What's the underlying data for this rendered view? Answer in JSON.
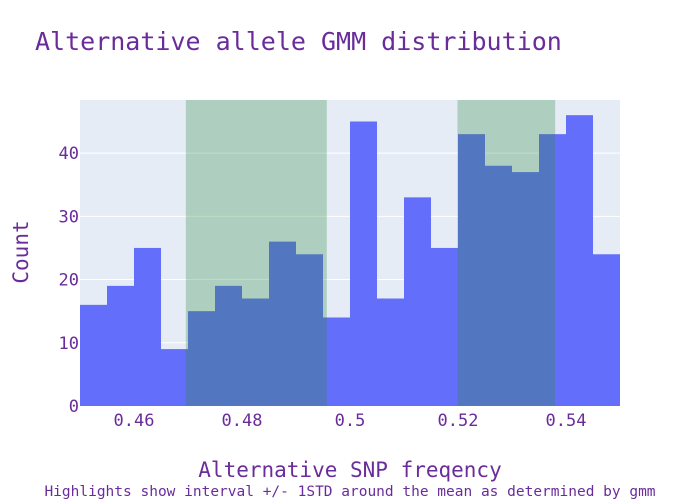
{
  "chart_data": {
    "type": "bar",
    "title": "Alternative allele GMM distribution",
    "xlabel": "Alternative SNP freqency",
    "ylabel": "Count",
    "caption": "Highlights show interval +/- 1STD around the mean as determined by gmm",
    "bin_width": 0.005,
    "xlim": [
      0.45,
      0.55
    ],
    "ylim": [
      0,
      48.4
    ],
    "x": [
      0.4525,
      0.4575,
      0.4625,
      0.4675,
      0.4725,
      0.4775,
      0.4825,
      0.4875,
      0.4925,
      0.4975,
      0.5025,
      0.5075,
      0.5125,
      0.5175,
      0.5225,
      0.5275,
      0.5325,
      0.5375,
      0.5425,
      0.5475
    ],
    "values": [
      16,
      19,
      25,
      9,
      15,
      19,
      17,
      26,
      24,
      14,
      45,
      17,
      33,
      25,
      43,
      38,
      37,
      43,
      46,
      24
    ],
    "highlights": [
      {
        "x0": 0.4696,
        "x1": 0.4957
      },
      {
        "x0": 0.5199,
        "x1": 0.538
      }
    ],
    "x_ticks": [
      0.46,
      0.48,
      0.5,
      0.52,
      0.54
    ],
    "x_tick_labels": [
      "0.46",
      "0.48",
      "0.5",
      "0.52",
      "0.54"
    ],
    "y_ticks": [
      0,
      10,
      20,
      30,
      40
    ],
    "y_tick_labels": [
      "0",
      "10",
      "20",
      "30",
      "40"
    ],
    "grid": true,
    "colors": {
      "bar": "#636efa",
      "highlight": "#2e8b3e",
      "plot_bg": "#e5ecf6",
      "text": "#6a2c9a",
      "grid": "#ffffff"
    }
  }
}
